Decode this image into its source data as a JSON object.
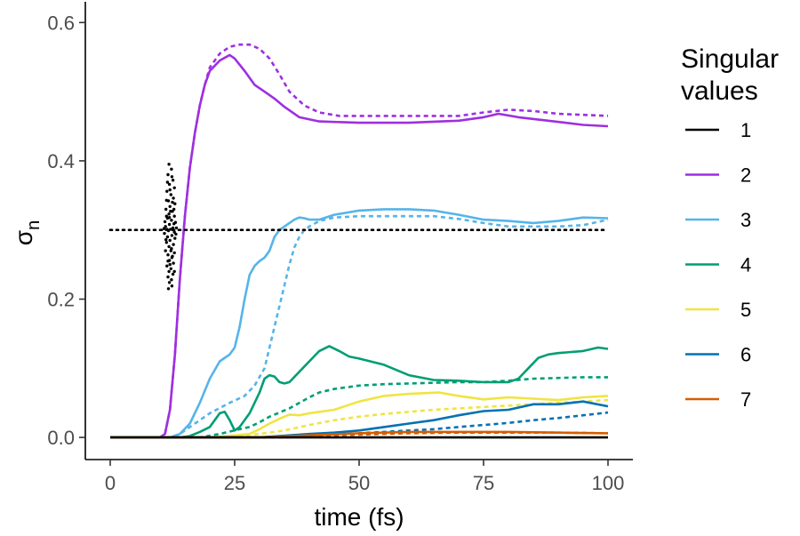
{
  "chart_data": {
    "type": "line",
    "xlabel": "time (fs)",
    "ylabel": "σ",
    "ylabel_sub": "n",
    "xlim": [
      -5,
      105
    ],
    "ylim": [
      -0.032,
      0.63
    ],
    "x_ticks": [
      0,
      25,
      50,
      75,
      100
    ],
    "x_tick_labels": [
      "0",
      "25",
      "50",
      "75",
      "100"
    ],
    "y_ticks": [
      0.0,
      0.2,
      0.4,
      0.6
    ],
    "y_tick_labels": [
      "0.0",
      "0.2",
      "0.4",
      "0.6"
    ],
    "grid": false,
    "legend": {
      "title_lines": [
        "Singular",
        "values"
      ],
      "placement": "right",
      "entries": [
        "1",
        "2",
        "3",
        "4",
        "5",
        "6",
        "7"
      ]
    },
    "series": [
      {
        "name": "1",
        "color": "#000000",
        "style": "solid",
        "x": [
          0,
          100
        ],
        "y": [
          0.0,
          0.0
        ]
      },
      {
        "name": "2",
        "color": "#9E2FE0",
        "style": "solid",
        "x": [
          0,
          10,
          11,
          12,
          13,
          14,
          15,
          16,
          17,
          18,
          19,
          20,
          22,
          24,
          25,
          27,
          29,
          31,
          33,
          35,
          38,
          42,
          50,
          60,
          70,
          75,
          78,
          82,
          88,
          95,
          100
        ],
        "y": [
          0.0,
          0.0,
          0.005,
          0.04,
          0.12,
          0.23,
          0.32,
          0.39,
          0.44,
          0.48,
          0.51,
          0.53,
          0.545,
          0.553,
          0.548,
          0.53,
          0.51,
          0.5,
          0.49,
          0.478,
          0.463,
          0.457,
          0.455,
          0.455,
          0.458,
          0.463,
          0.468,
          0.463,
          0.458,
          0.452,
          0.45
        ]
      },
      {
        "name": "2",
        "color": "#9E2FE0",
        "style": "dashed",
        "x": [
          0,
          10,
          11,
          12,
          13,
          14,
          15,
          16,
          17,
          18,
          19,
          20,
          22,
          24,
          26,
          28,
          30,
          32,
          34,
          36,
          39,
          42,
          46,
          50,
          60,
          70,
          75,
          80,
          85,
          90,
          100
        ],
        "y": [
          0.0,
          0.0,
          0.005,
          0.04,
          0.12,
          0.23,
          0.32,
          0.39,
          0.44,
          0.48,
          0.51,
          0.535,
          0.555,
          0.565,
          0.568,
          0.568,
          0.562,
          0.548,
          0.525,
          0.5,
          0.48,
          0.47,
          0.465,
          0.465,
          0.465,
          0.465,
          0.47,
          0.474,
          0.472,
          0.468,
          0.465
        ]
      },
      {
        "name": "3",
        "color": "#56B4E9",
        "style": "solid",
        "x": [
          0,
          12,
          14,
          16,
          18,
          20,
          22,
          24,
          25,
          26,
          27,
          28,
          29,
          30,
          31,
          32,
          33,
          34,
          35,
          36,
          37,
          38,
          39,
          40,
          42,
          45,
          50,
          55,
          60,
          65,
          70,
          75,
          80,
          85,
          90,
          95,
          100
        ],
        "y": [
          0.0,
          0.0,
          0.005,
          0.02,
          0.05,
          0.085,
          0.11,
          0.12,
          0.13,
          0.16,
          0.2,
          0.235,
          0.248,
          0.255,
          0.26,
          0.27,
          0.29,
          0.3,
          0.305,
          0.31,
          0.315,
          0.318,
          0.317,
          0.315,
          0.315,
          0.322,
          0.328,
          0.33,
          0.33,
          0.328,
          0.322,
          0.315,
          0.313,
          0.31,
          0.313,
          0.318,
          0.317
        ]
      },
      {
        "name": "3",
        "color": "#56B4E9",
        "style": "dashed",
        "x": [
          0,
          12,
          14,
          16,
          18,
          20,
          24,
          27,
          29,
          31,
          32,
          33,
          34,
          35,
          36,
          37,
          38,
          39,
          40,
          42,
          45,
          50,
          55,
          60,
          65,
          70,
          75,
          80,
          85,
          90,
          95,
          100
        ],
        "y": [
          0.0,
          0.0,
          0.005,
          0.015,
          0.025,
          0.035,
          0.05,
          0.06,
          0.075,
          0.1,
          0.13,
          0.16,
          0.19,
          0.22,
          0.25,
          0.275,
          0.29,
          0.3,
          0.305,
          0.313,
          0.318,
          0.32,
          0.32,
          0.32,
          0.32,
          0.316,
          0.31,
          0.305,
          0.305,
          0.305,
          0.307,
          0.315
        ]
      },
      {
        "name": "4",
        "color": "#009E73",
        "style": "solid",
        "x": [
          0,
          14,
          16,
          18,
          20,
          21,
          22,
          23,
          24,
          25,
          26,
          28,
          30,
          31,
          32,
          33,
          34,
          35,
          36,
          38,
          40,
          42,
          44,
          46,
          48,
          50,
          55,
          60,
          65,
          70,
          75,
          80,
          82,
          84,
          86,
          88,
          90,
          95,
          98,
          100
        ],
        "y": [
          0.0,
          0.0,
          0.002,
          0.008,
          0.015,
          0.025,
          0.035,
          0.037,
          0.025,
          0.01,
          0.015,
          0.035,
          0.065,
          0.085,
          0.09,
          0.088,
          0.08,
          0.078,
          0.08,
          0.095,
          0.11,
          0.125,
          0.132,
          0.125,
          0.117,
          0.114,
          0.105,
          0.09,
          0.083,
          0.082,
          0.08,
          0.08,
          0.085,
          0.1,
          0.115,
          0.12,
          0.122,
          0.125,
          0.13,
          0.128
        ]
      },
      {
        "name": "4",
        "color": "#009E73",
        "style": "dashed",
        "x": [
          0,
          18,
          22,
          26,
          28,
          30,
          32,
          34,
          36,
          38,
          40,
          42,
          45,
          50,
          55,
          60,
          65,
          70,
          75,
          80,
          85,
          90,
          95,
          100
        ],
        "y": [
          0.0,
          0.0,
          0.005,
          0.012,
          0.015,
          0.022,
          0.03,
          0.036,
          0.042,
          0.05,
          0.058,
          0.065,
          0.07,
          0.075,
          0.077,
          0.078,
          0.079,
          0.08,
          0.08,
          0.082,
          0.085,
          0.086,
          0.087,
          0.087
        ]
      },
      {
        "name": "5",
        "color": "#F0E442",
        "style": "solid",
        "x": [
          0,
          20,
          25,
          28,
          30,
          32,
          34,
          36,
          38,
          40,
          45,
          50,
          55,
          60,
          63,
          66,
          70,
          75,
          80,
          85,
          90,
          95,
          100
        ],
        "y": [
          0.0,
          0.0,
          0.003,
          0.005,
          0.012,
          0.02,
          0.027,
          0.033,
          0.032,
          0.035,
          0.04,
          0.052,
          0.06,
          0.063,
          0.064,
          0.065,
          0.06,
          0.055,
          0.058,
          0.056,
          0.054,
          0.058,
          0.06
        ]
      },
      {
        "name": "5",
        "color": "#F0E442",
        "style": "dashed",
        "x": [
          0,
          20,
          30,
          35,
          40,
          45,
          50,
          55,
          60,
          65,
          70,
          75,
          80,
          85,
          90,
          95,
          100
        ],
        "y": [
          0.0,
          0.0,
          0.005,
          0.01,
          0.018,
          0.025,
          0.03,
          0.034,
          0.037,
          0.04,
          0.042,
          0.044,
          0.046,
          0.048,
          0.05,
          0.052,
          0.054
        ]
      },
      {
        "name": "6",
        "color": "#0072B2",
        "style": "solid",
        "x": [
          0,
          30,
          40,
          45,
          50,
          55,
          60,
          65,
          70,
          75,
          80,
          85,
          90,
          95,
          100
        ],
        "y": [
          0.0,
          0.0,
          0.005,
          0.007,
          0.01,
          0.015,
          0.02,
          0.025,
          0.032,
          0.038,
          0.04,
          0.048,
          0.048,
          0.052,
          0.045
        ]
      },
      {
        "name": "6",
        "color": "#0072B2",
        "style": "dashed",
        "x": [
          0,
          35,
          45,
          50,
          55,
          60,
          65,
          70,
          75,
          80,
          85,
          90,
          95,
          100
        ],
        "y": [
          0.0,
          0.0,
          0.003,
          0.006,
          0.008,
          0.01,
          0.012,
          0.015,
          0.018,
          0.021,
          0.025,
          0.028,
          0.032,
          0.036
        ]
      },
      {
        "name": "7",
        "color": "#D55E00",
        "style": "solid",
        "x": [
          0,
          30,
          40,
          50,
          60,
          70,
          80,
          90,
          100
        ],
        "y": [
          0.0,
          0.0,
          0.003,
          0.006,
          0.008,
          0.008,
          0.008,
          0.007,
          0.006
        ]
      },
      {
        "name": "7",
        "color": "#D55E00",
        "style": "dashed",
        "x": [
          0,
          30,
          40,
          50,
          60,
          70,
          80,
          90,
          100
        ],
        "y": [
          0.0,
          0.0,
          0.002,
          0.004,
          0.006,
          0.007,
          0.007,
          0.007,
          0.006
        ]
      }
    ],
    "reference_line": {
      "color": "#000000",
      "style": "dotted",
      "x": [
        0,
        100
      ],
      "y": [
        0.3,
        0.3
      ]
    },
    "scatter_cloud": {
      "color": "#000000",
      "points": [
        [
          11.8,
          0.395
        ],
        [
          12.3,
          0.388
        ],
        [
          11.6,
          0.38
        ],
        [
          12.6,
          0.372
        ],
        [
          11.9,
          0.366
        ],
        [
          12.9,
          0.361
        ],
        [
          11.4,
          0.356
        ],
        [
          12.2,
          0.351
        ],
        [
          12.7,
          0.346
        ],
        [
          11.7,
          0.342
        ],
        [
          13.0,
          0.338
        ],
        [
          12.0,
          0.334
        ],
        [
          11.2,
          0.33
        ],
        [
          12.5,
          0.327
        ],
        [
          11.8,
          0.323
        ],
        [
          12.9,
          0.32
        ],
        [
          11.5,
          0.317
        ],
        [
          12.3,
          0.314
        ],
        [
          13.1,
          0.311
        ],
        [
          11.9,
          0.308
        ],
        [
          11.1,
          0.305
        ],
        [
          12.6,
          0.303
        ],
        [
          12.1,
          0.301
        ],
        [
          11.7,
          0.299
        ],
        [
          12.9,
          0.297
        ],
        [
          10.9,
          0.295
        ],
        [
          12.4,
          0.292
        ],
        [
          11.5,
          0.29
        ],
        [
          13.0,
          0.288
        ],
        [
          12.0,
          0.285
        ],
        [
          11.3,
          0.282
        ],
        [
          12.7,
          0.279
        ],
        [
          11.8,
          0.276
        ],
        [
          12.3,
          0.273
        ],
        [
          11.1,
          0.27
        ],
        [
          12.9,
          0.267
        ],
        [
          11.6,
          0.264
        ],
        [
          12.4,
          0.26
        ],
        [
          11.9,
          0.256
        ],
        [
          12.7,
          0.252
        ],
        [
          11.4,
          0.248
        ],
        [
          12.2,
          0.244
        ],
        [
          11.8,
          0.24
        ],
        [
          12.6,
          0.236
        ],
        [
          11.6,
          0.232
        ],
        [
          12.3,
          0.228
        ],
        [
          11.9,
          0.224
        ],
        [
          12.4,
          0.219
        ],
        [
          11.7,
          0.215
        ],
        [
          12.1,
          0.327
        ],
        [
          11.3,
          0.343
        ],
        [
          12.8,
          0.309
        ],
        [
          11.2,
          0.286
        ],
        [
          12.5,
          0.262
        ],
        [
          11.0,
          0.312
        ],
        [
          13.2,
          0.294
        ],
        [
          12.0,
          0.358
        ],
        [
          11.5,
          0.369
        ],
        [
          12.4,
          0.377
        ],
        [
          12.0,
          0.25
        ],
        [
          12.9,
          0.24
        ],
        [
          11.4,
          0.301
        ],
        [
          10.8,
          0.302
        ],
        [
          13.3,
          0.303
        ],
        [
          11.9,
          0.318
        ],
        [
          12.5,
          0.34
        ],
        [
          11.6,
          0.255
        ],
        [
          12.2,
          0.27
        ],
        [
          11.3,
          0.32
        ],
        [
          12.8,
          0.33
        ]
      ]
    }
  }
}
